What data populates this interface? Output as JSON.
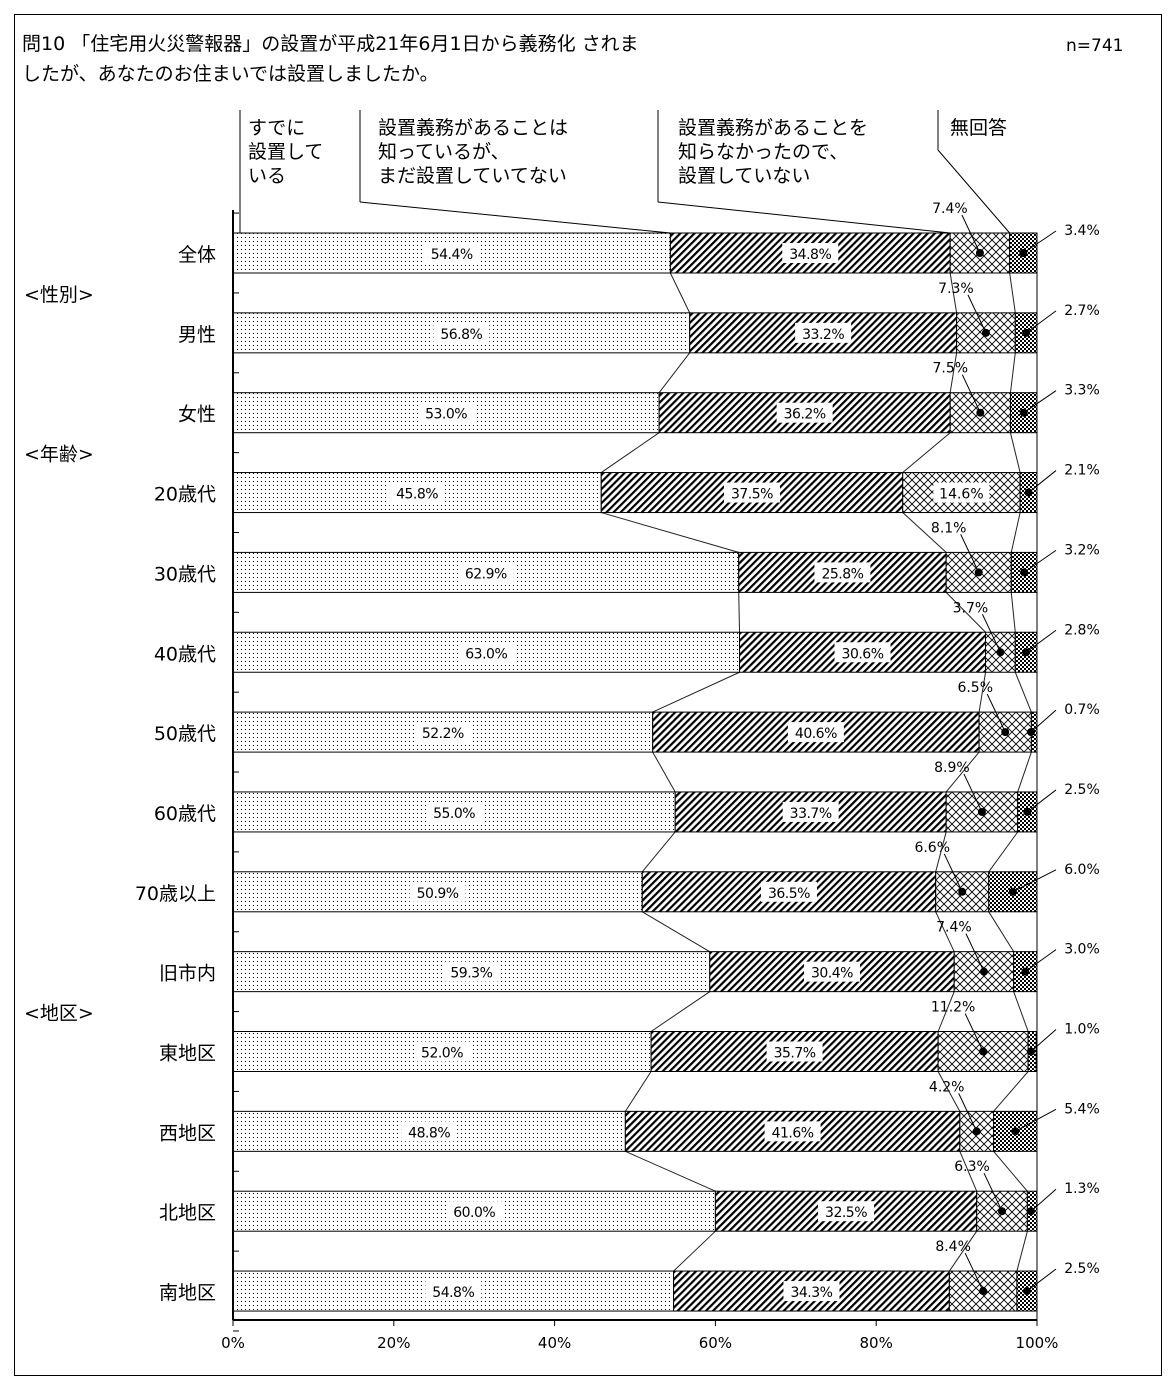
{
  "question": {
    "line1": "問10 「住宅用火災警報器」の設置が平成21年6月1日から義務化 されま",
    "line2": "したが、あなたのお住まいでは設置しましたか。",
    "n": "n=741"
  },
  "legend": [
    {
      "lines": [
        "すでに",
        "設置して",
        "いる"
      ]
    },
    {
      "lines": [
        "設置義務があることは",
        "知っているが、",
        "まだ設置していてない"
      ]
    },
    {
      "lines": [
        "設置義務があることを",
        "知らなかったので、",
        "設置していない"
      ]
    },
    {
      "lines": [
        "無回答"
      ]
    }
  ],
  "groups": [
    {
      "label": "<性別>",
      "row": 1
    },
    {
      "label": "<年齢>",
      "row": 3
    },
    {
      "label": "<地区>",
      "row": 10
    }
  ],
  "chart_data": {
    "type": "bar",
    "stacked": true,
    "orientation": "horizontal",
    "categories": [
      "全体",
      "男性",
      "女性",
      "20歳代",
      "30歳代",
      "40歳代",
      "50歳代",
      "60歳代",
      "70歳以上",
      "旧市内",
      "東地区",
      "西地区",
      "北地区",
      "南地区"
    ],
    "series": [
      {
        "name": "すでに設置している",
        "values": [
          54.4,
          56.8,
          53.0,
          45.8,
          62.9,
          63.0,
          52.2,
          55.0,
          50.9,
          59.3,
          52.0,
          48.8,
          60.0,
          54.8
        ]
      },
      {
        "name": "設置義務があることは知っているが、まだ設置していてない",
        "values": [
          34.8,
          33.2,
          36.2,
          37.5,
          25.8,
          30.6,
          40.6,
          33.7,
          36.5,
          30.4,
          35.7,
          41.6,
          32.5,
          34.3
        ]
      },
      {
        "name": "設置義務があることを知らなかったので、設置していない",
        "values": [
          7.4,
          7.3,
          7.5,
          14.6,
          8.1,
          3.7,
          6.5,
          8.9,
          6.6,
          7.4,
          11.2,
          4.2,
          6.3,
          8.4
        ]
      },
      {
        "name": "無回答",
        "values": [
          3.4,
          2.7,
          3.3,
          2.1,
          3.2,
          2.8,
          0.7,
          2.5,
          6.0,
          3.0,
          1.0,
          5.4,
          1.3,
          2.5
        ]
      }
    ],
    "xlim": [
      0,
      100
    ],
    "xticks": [
      "0%",
      "20%",
      "40%",
      "60%",
      "80%",
      "100%"
    ],
    "value_labels": {
      "s1": [
        "54.4%",
        "56.8%",
        "53.0%",
        "45.8%",
        "62.9%",
        "63.0%",
        "52.2%",
        "55.0%",
        "50.9%",
        "59.3%",
        "52.0%",
        "48.8%",
        "60.0%",
        "54.8%"
      ],
      "s2": [
        "34.8%",
        "33.2%",
        "36.2%",
        "37.5%",
        "25.8%",
        "30.6%",
        "40.6%",
        "33.7%",
        "36.5%",
        "30.4%",
        "35.7%",
        "41.6%",
        "32.5%",
        "34.3%"
      ],
      "s3": [
        "7.4%",
        "7.3%",
        "7.5%",
        "14.6%",
        "8.1%",
        "3.7%",
        "6.5%",
        "8.9%",
        "6.6%",
        "7.4%",
        "11.2%",
        "4.2%",
        "6.3%",
        "8.4%"
      ],
      "s4": [
        "3.4%",
        "2.7%",
        "3.3%",
        "2.1%",
        "3.2%",
        "2.8%",
        "0.7%",
        "2.5%",
        "6.0%",
        "3.0%",
        "1.0%",
        "5.4%",
        "1.3%",
        "2.5%"
      ]
    },
    "grid": false
  }
}
